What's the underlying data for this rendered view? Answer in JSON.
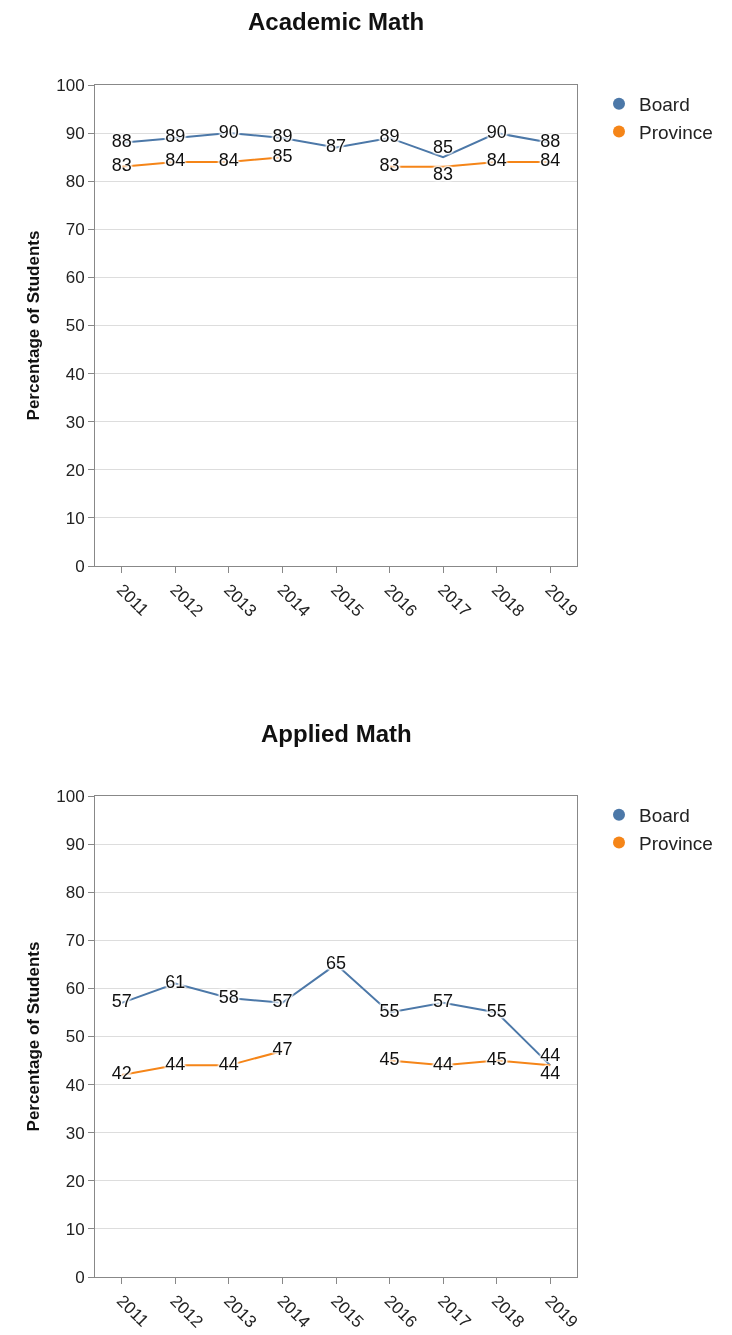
{
  "chart_data": [
    {
      "type": "line",
      "title": "Academic Math",
      "ylabel": "Percentage of Students",
      "categories": [
        "2011",
        "2012",
        "2013",
        "2014",
        "2015",
        "2016",
        "2017",
        "2018",
        "2019"
      ],
      "series": [
        {
          "name": "Board",
          "color": "#4c78a8",
          "values": [
            88,
            89,
            90,
            89,
            87,
            89,
            85,
            90,
            88
          ]
        },
        {
          "name": "Province",
          "color": "#f58518",
          "values": [
            83,
            84,
            84,
            85,
            null,
            83,
            83,
            84,
            84
          ]
        }
      ],
      "ylim": [
        0,
        100
      ],
      "yticks": [
        0,
        10,
        20,
        30,
        40,
        50,
        60,
        70,
        80,
        90,
        100
      ],
      "grid": "y",
      "legend": "top right",
      "data_labels": true
    },
    {
      "type": "line",
      "title": "Applied Math",
      "ylabel": "Percentage of Students",
      "categories": [
        "2011",
        "2012",
        "2013",
        "2014",
        "2015",
        "2016",
        "2017",
        "2018",
        "2019"
      ],
      "series": [
        {
          "name": "Board",
          "color": "#4c78a8",
          "values": [
            57,
            61,
            58,
            57,
            65,
            55,
            57,
            55,
            44
          ]
        },
        {
          "name": "Province",
          "color": "#f58518",
          "values": [
            42,
            44,
            44,
            47,
            null,
            45,
            44,
            45,
            44
          ]
        }
      ],
      "ylim": [
        0,
        100
      ],
      "yticks": [
        0,
        10,
        20,
        30,
        40,
        50,
        60,
        70,
        80,
        90,
        100
      ],
      "grid": "y",
      "legend": "top right",
      "data_labels": true
    }
  ]
}
